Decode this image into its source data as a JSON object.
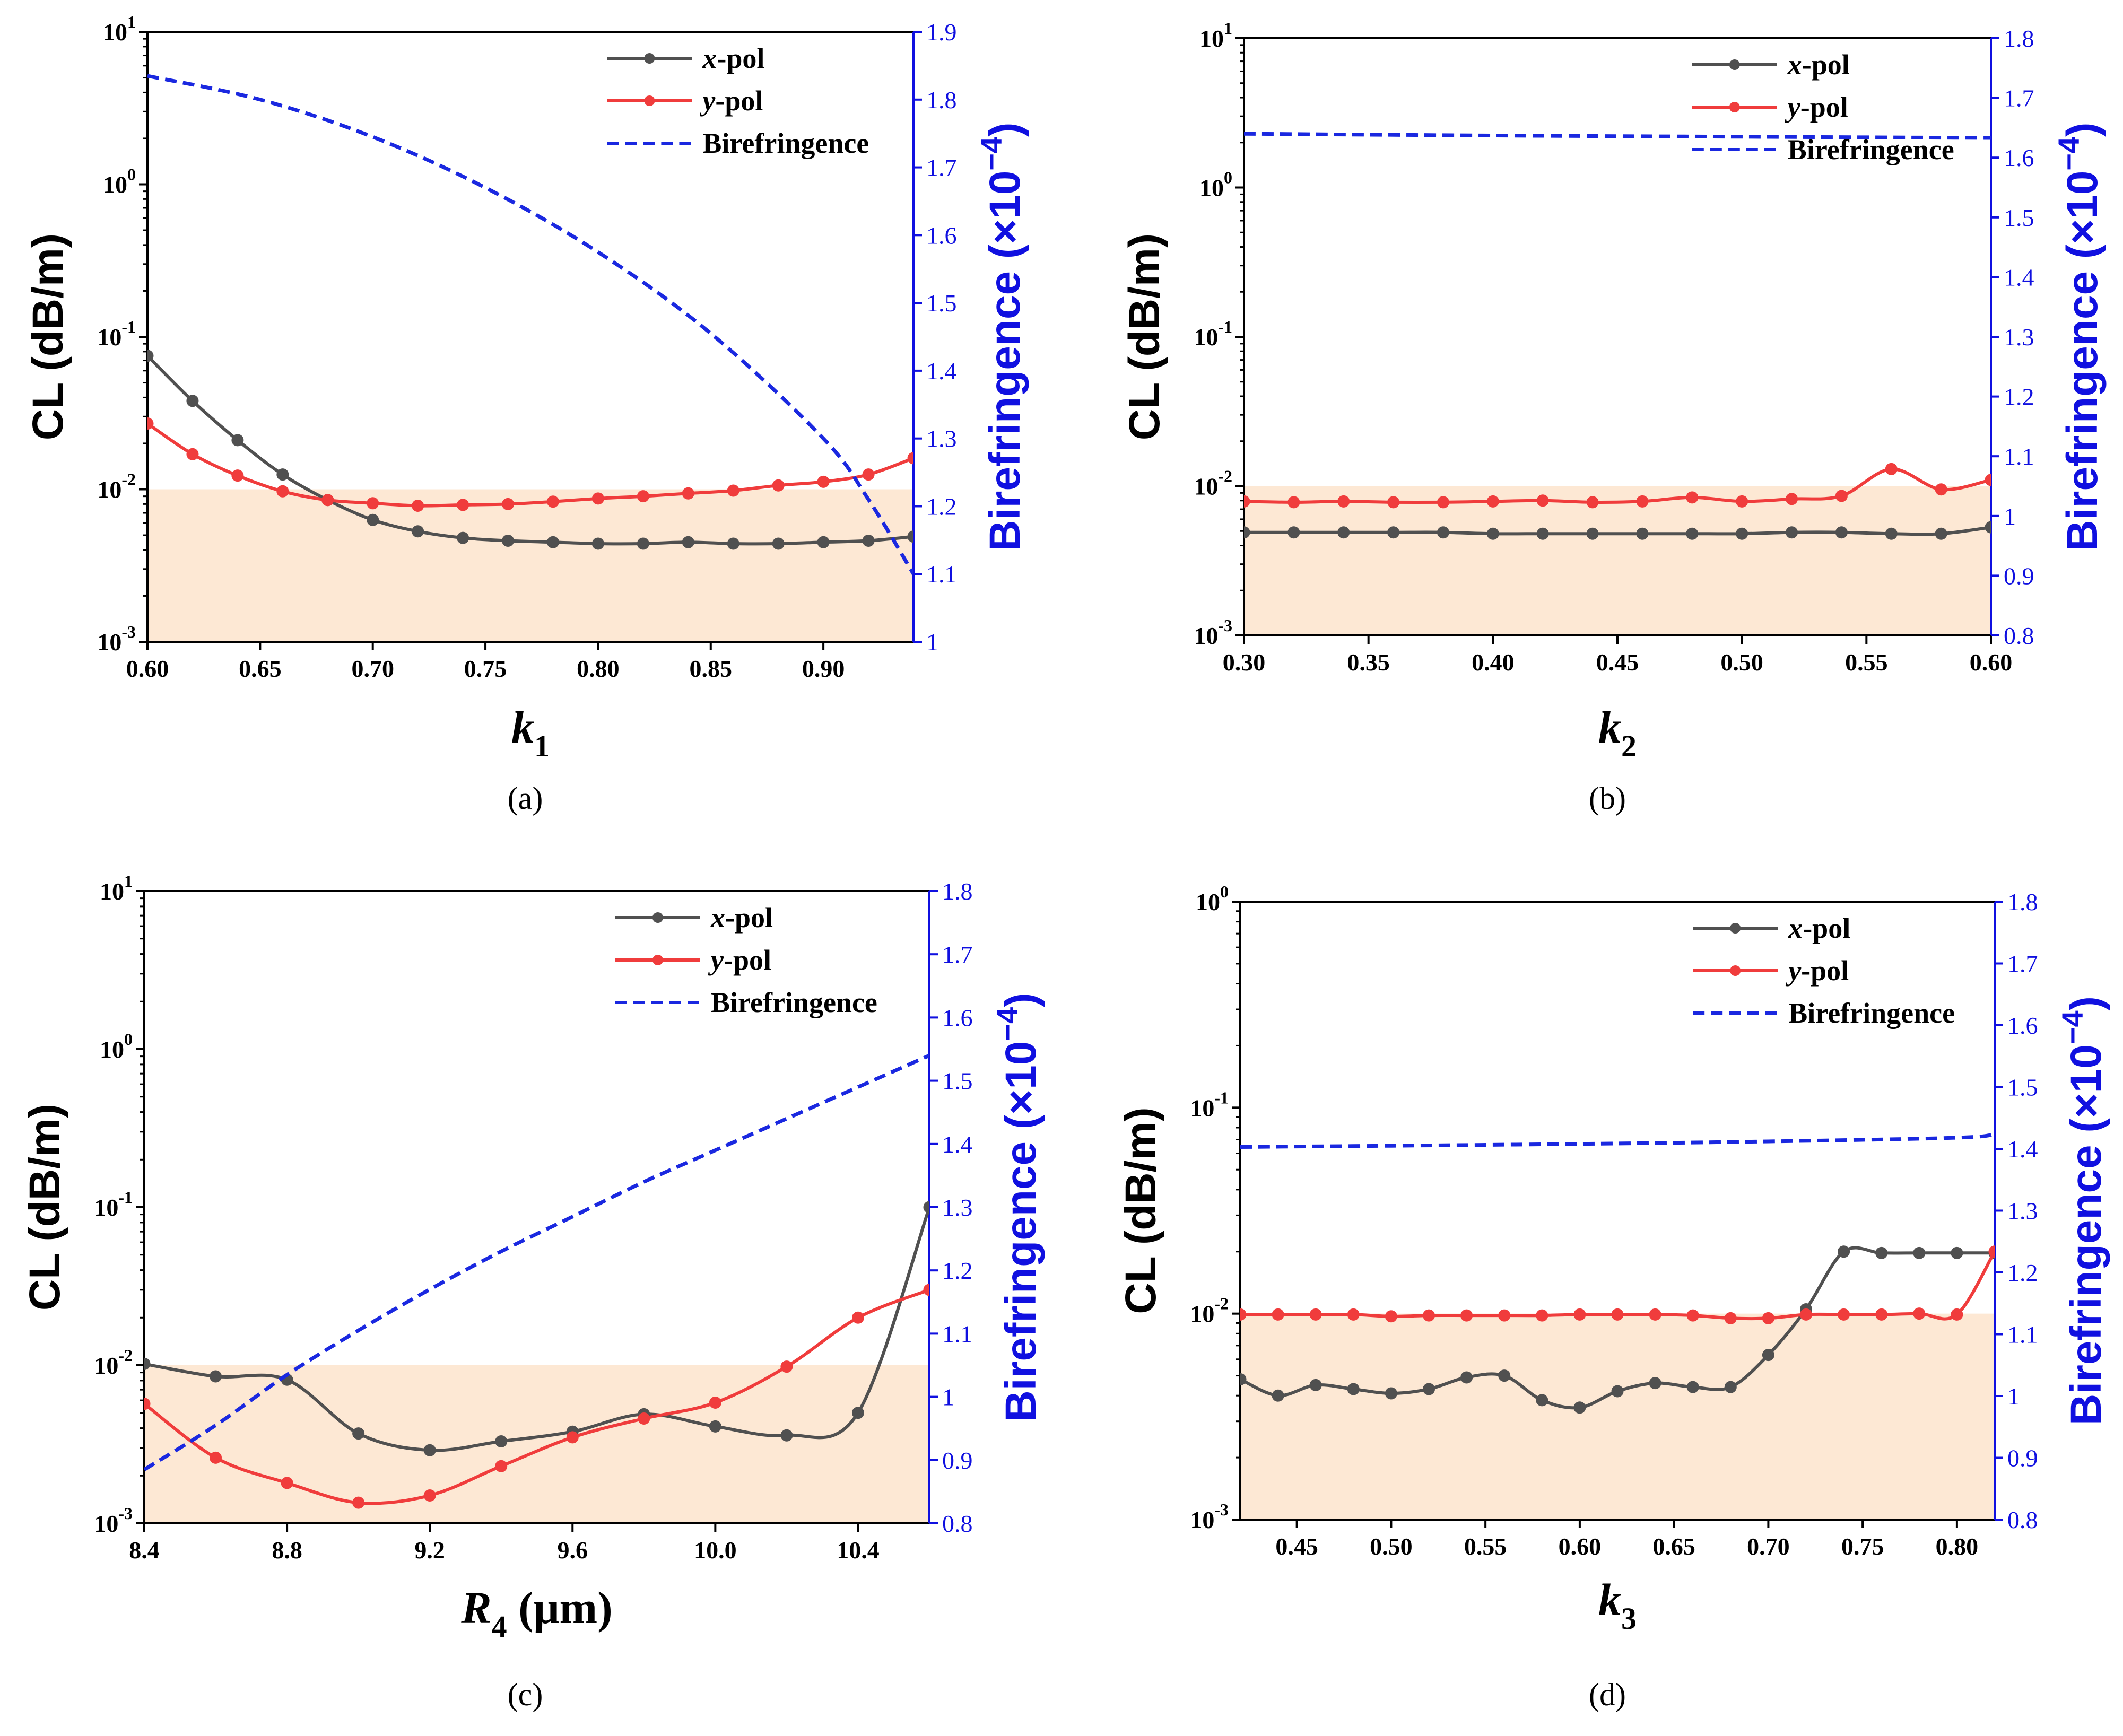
{
  "colors": {
    "x_pol": "#505050",
    "y_pol": "#f03c3c",
    "birefringence": "#1a28e0",
    "shade": "#fde8d4",
    "axis_right": "#1010e0"
  },
  "chart_data": [
    {
      "type": "line",
      "caption": "(a)",
      "xlabel_sym": "k",
      "xlabel_sub": "1",
      "xlabel_unit": "",
      "ylabel": "CL (dB/m)",
      "y2label": "Birefringence (×10",
      "y2label_exp": "−4",
      "y2label_close": ")",
      "xlim": [
        0.6,
        0.94
      ],
      "xticks": [
        "0.60",
        "0.65",
        "0.70",
        "0.75",
        "0.80",
        "0.85",
        "0.90"
      ],
      "xtick_values": [
        0.6,
        0.65,
        0.7,
        0.75,
        0.8,
        0.85,
        0.9
      ],
      "yscale": "log",
      "ylim_exp": [
        -3,
        1
      ],
      "ytick_exp": [
        -3,
        -2,
        -1,
        0,
        1
      ],
      "y2lim": [
        1.0,
        1.9
      ],
      "y2ticks": [
        "1",
        "1.1",
        "1.2",
        "1.3",
        "1.4",
        "1.5",
        "1.6",
        "1.7",
        "1.8",
        "1.9"
      ],
      "shade_below": 0.01,
      "legend": {
        "x_pol": "x",
        "y_pol": "y",
        "suffix": "-pol",
        "biref": "Birefringence"
      },
      "series": [
        {
          "name": "x-pol",
          "markers": true,
          "x": [
            0.6,
            0.62,
            0.64,
            0.66,
            0.68,
            0.7,
            0.72,
            0.74,
            0.76,
            0.78,
            0.8,
            0.82,
            0.84,
            0.86,
            0.88,
            0.9,
            0.92,
            0.94
          ],
          "y": [
            0.075,
            0.038,
            0.021,
            0.0125,
            0.0085,
            0.0063,
            0.0053,
            0.0048,
            0.0046,
            0.0045,
            0.0044,
            0.0044,
            0.0045,
            0.0044,
            0.0044,
            0.0045,
            0.0046,
            0.0049
          ]
        },
        {
          "name": "y-pol",
          "markers": true,
          "x": [
            0.6,
            0.62,
            0.64,
            0.66,
            0.68,
            0.7,
            0.72,
            0.74,
            0.76,
            0.78,
            0.8,
            0.82,
            0.84,
            0.86,
            0.88,
            0.9,
            0.92,
            0.94
          ],
          "y": [
            0.027,
            0.017,
            0.0123,
            0.0097,
            0.0085,
            0.0081,
            0.0078,
            0.0079,
            0.008,
            0.0083,
            0.0087,
            0.009,
            0.0094,
            0.0098,
            0.0106,
            0.0112,
            0.0125,
            0.016
          ]
        },
        {
          "name": "Birefringence",
          "axis": "right",
          "x": [
            0.6,
            0.65,
            0.7,
            0.75,
            0.8,
            0.85,
            0.9,
            0.92,
            0.94
          ],
          "y": [
            1.835,
            1.8,
            1.745,
            1.67,
            1.575,
            1.455,
            1.3,
            1.21,
            1.1
          ]
        }
      ]
    },
    {
      "type": "line",
      "caption": "(b)",
      "xlabel_sym": "k",
      "xlabel_sub": "2",
      "xlabel_unit": "",
      "ylabel": "CL (dB/m)",
      "y2label": "Birefringence (×10",
      "y2label_exp": "−4",
      "y2label_close": ")",
      "xlim": [
        0.3,
        0.6
      ],
      "xticks": [
        "0.30",
        "0.35",
        "0.40",
        "0.45",
        "0.50",
        "0.55",
        "0.60"
      ],
      "xtick_values": [
        0.3,
        0.35,
        0.4,
        0.45,
        0.5,
        0.55,
        0.6
      ],
      "yscale": "log",
      "ylim_exp": [
        -3,
        1
      ],
      "ytick_exp": [
        -3,
        -2,
        -1,
        0,
        1
      ],
      "y2lim": [
        0.8,
        1.8
      ],
      "y2ticks": [
        "0.8",
        "0.9",
        "1",
        "1.1",
        "1.2",
        "1.3",
        "1.4",
        "1.5",
        "1.6",
        "1.7",
        "1.8"
      ],
      "shade_below": 0.01,
      "legend": {
        "x_pol": "x",
        "y_pol": "y",
        "suffix": "-pol",
        "biref": "Birefringence"
      },
      "series": [
        {
          "name": "x-pol",
          "markers": true,
          "x": [
            0.3,
            0.32,
            0.34,
            0.36,
            0.38,
            0.4,
            0.42,
            0.44,
            0.46,
            0.48,
            0.5,
            0.52,
            0.54,
            0.56,
            0.58,
            0.6
          ],
          "y": [
            0.0049,
            0.0049,
            0.0049,
            0.0049,
            0.0049,
            0.0048,
            0.0048,
            0.0048,
            0.0048,
            0.0048,
            0.0048,
            0.0049,
            0.0049,
            0.0048,
            0.0048,
            0.0053
          ]
        },
        {
          "name": "y-pol",
          "markers": true,
          "x": [
            0.3,
            0.32,
            0.34,
            0.36,
            0.38,
            0.4,
            0.42,
            0.44,
            0.46,
            0.48,
            0.5,
            0.52,
            0.54,
            0.56,
            0.58,
            0.6
          ],
          "y": [
            0.0079,
            0.0078,
            0.0079,
            0.0078,
            0.0078,
            0.0079,
            0.008,
            0.0078,
            0.0079,
            0.0084,
            0.0079,
            0.0082,
            0.0086,
            0.013,
            0.0095,
            0.011
          ]
        },
        {
          "name": "Birefringence",
          "axis": "right",
          "x": [
            0.3,
            0.4,
            0.5,
            0.6
          ],
          "y": [
            1.64,
            1.637,
            1.635,
            1.633
          ]
        }
      ]
    },
    {
      "type": "line",
      "caption": "(c)",
      "xlabel_sym": "R",
      "xlabel_sub": "4",
      "xlabel_unit": " (μm)",
      "ylabel": "CL (dB/m)",
      "y2label": "Birefringence (×10",
      "y2label_exp": "−4",
      "y2label_close": ")",
      "xlim": [
        8.4,
        10.6
      ],
      "xticks": [
        "8.4",
        "8.8",
        "9.2",
        "9.6",
        "10.0",
        "10.4"
      ],
      "xtick_values": [
        8.4,
        8.8,
        9.2,
        9.6,
        10.0,
        10.4
      ],
      "yscale": "log",
      "ylim_exp": [
        -3,
        1
      ],
      "ytick_exp": [
        -3,
        -2,
        -1,
        0,
        1
      ],
      "y2lim": [
        0.8,
        1.8
      ],
      "y2ticks": [
        "0.8",
        "0.9",
        "1",
        "1.1",
        "1.2",
        "1.3",
        "1.4",
        "1.5",
        "1.6",
        "1.7",
        "1.8"
      ],
      "shade_below": 0.01,
      "legend": {
        "x_pol": "x",
        "y_pol": "y",
        "suffix": "-pol",
        "biref": "Birefringence"
      },
      "series": [
        {
          "name": "x-pol",
          "markers": true,
          "x": [
            8.4,
            8.6,
            8.8,
            9.0,
            9.2,
            9.4,
            9.6,
            9.8,
            10.0,
            10.2,
            10.4,
            10.6
          ],
          "y": [
            0.0102,
            0.0085,
            0.0081,
            0.0037,
            0.0029,
            0.0033,
            0.0038,
            0.0049,
            0.0041,
            0.0036,
            0.005,
            0.1
          ]
        },
        {
          "name": "y-pol",
          "markers": true,
          "x": [
            8.4,
            8.6,
            8.8,
            9.0,
            9.2,
            9.4,
            9.6,
            9.8,
            10.0,
            10.2,
            10.4,
            10.6
          ],
          "y": [
            0.0057,
            0.0026,
            0.0018,
            0.00135,
            0.0015,
            0.0023,
            0.0035,
            0.0046,
            0.0058,
            0.0098,
            0.02,
            0.03
          ]
        },
        {
          "name": "Birefringence",
          "axis": "right",
          "x": [
            8.4,
            8.6,
            8.8,
            9.0,
            9.2,
            9.4,
            9.6,
            9.8,
            10.0,
            10.2,
            10.4,
            10.6
          ],
          "y": [
            0.885,
            0.955,
            1.035,
            1.105,
            1.17,
            1.23,
            1.285,
            1.34,
            1.39,
            1.44,
            1.49,
            1.54
          ]
        }
      ]
    },
    {
      "type": "line",
      "caption": "(d)",
      "xlabel_sym": "k",
      "xlabel_sub": "3",
      "xlabel_unit": "",
      "ylabel": "CL (dB/m)",
      "y2label": "Birefringence (×10",
      "y2label_exp": "−4",
      "y2label_close": ")",
      "xlim": [
        0.42,
        0.82
      ],
      "xticks": [
        "0.45",
        "0.50",
        "0.55",
        "0.60",
        "0.65",
        "0.70",
        "0.75",
        "0.80"
      ],
      "xtick_values": [
        0.45,
        0.5,
        0.55,
        0.6,
        0.65,
        0.7,
        0.75,
        0.8
      ],
      "yscale": "log",
      "ylim_exp": [
        -3,
        0
      ],
      "ytick_exp": [
        -3,
        -2,
        -1,
        0
      ],
      "y2lim": [
        0.8,
        1.8
      ],
      "y2ticks": [
        "0.8",
        "0.9",
        "1",
        "1.1",
        "1.2",
        "1.3",
        "1.4",
        "1.5",
        "1.6",
        "1.7",
        "1.8"
      ],
      "shade_below": 0.01,
      "legend": {
        "x_pol": "x",
        "y_pol": "y",
        "suffix": "-pol",
        "biref": "Birefringence"
      },
      "series": [
        {
          "name": "x-pol",
          "markers": true,
          "x": [
            0.42,
            0.44,
            0.46,
            0.48,
            0.5,
            0.52,
            0.54,
            0.56,
            0.58,
            0.6,
            0.62,
            0.64,
            0.66,
            0.68,
            0.7,
            0.72,
            0.74,
            0.76,
            0.78,
            0.8,
            0.82
          ],
          "y": [
            0.0048,
            0.004,
            0.0045,
            0.0043,
            0.0041,
            0.0043,
            0.0049,
            0.005,
            0.0038,
            0.0035,
            0.0042,
            0.0046,
            0.0044,
            0.0044,
            0.0063,
            0.0105,
            0.02,
            0.0197,
            0.0197,
            0.0197,
            0.0197
          ]
        },
        {
          "name": "y-pol",
          "markers": true,
          "x": [
            0.42,
            0.44,
            0.46,
            0.48,
            0.5,
            0.52,
            0.54,
            0.56,
            0.58,
            0.6,
            0.62,
            0.64,
            0.66,
            0.68,
            0.7,
            0.72,
            0.74,
            0.76,
            0.78,
            0.8,
            0.82
          ],
          "y": [
            0.0099,
            0.0099,
            0.0099,
            0.0099,
            0.0097,
            0.0098,
            0.0098,
            0.0098,
            0.0098,
            0.0099,
            0.0099,
            0.0099,
            0.0098,
            0.0095,
            0.0095,
            0.0099,
            0.0099,
            0.0099,
            0.01,
            0.0099,
            0.02
          ]
        },
        {
          "name": "Birefringence",
          "axis": "right",
          "x": [
            0.42,
            0.5,
            0.6,
            0.7,
            0.8,
            0.82
          ],
          "y": [
            1.403,
            1.405,
            1.408,
            1.412,
            1.418,
            1.424
          ]
        }
      ]
    }
  ]
}
